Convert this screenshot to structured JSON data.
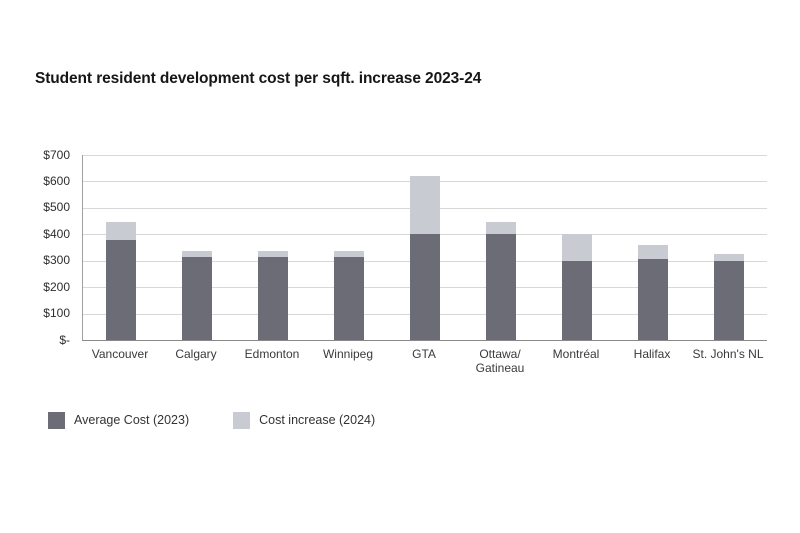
{
  "page": {
    "background_color": "#ffffff"
  },
  "chart_data": {
    "type": "bar",
    "stacked": true,
    "title": "Student resident development cost per sqft. increase 2023-24",
    "xlabel": "",
    "ylabel": "",
    "ylim": [
      0,
      700
    ],
    "grid": true,
    "legend_position": "below-left",
    "categories": [
      "Vancouver",
      "Calgary",
      "Edmonton",
      "Winnipeg",
      "GTA",
      "Ottawa/\nGatineau",
      "Montréal",
      "Halifax",
      "St. John's NL"
    ],
    "series": [
      {
        "name": "Average Cost (2023)",
        "color": "#6b6c76",
        "values": [
          380,
          315,
          315,
          315,
          400,
          400,
          300,
          305,
          300
        ]
      },
      {
        "name": "Cost increase (2024)",
        "color": "#c9cbd2",
        "values": [
          65,
          20,
          20,
          20,
          220,
          45,
          100,
          55,
          25
        ]
      }
    ],
    "stack_totals_2024": [
      445,
      335,
      335,
      335,
      620,
      445,
      400,
      360,
      325
    ],
    "yticks": [
      {
        "value": 700,
        "label": "$700"
      },
      {
        "value": 600,
        "label": "$600"
      },
      {
        "value": 500,
        "label": "$500"
      },
      {
        "value": 400,
        "label": "$400"
      },
      {
        "value": 300,
        "label": "$300"
      },
      {
        "value": 200,
        "label": "$200"
      },
      {
        "value": 100,
        "label": "$100"
      },
      {
        "value": 0,
        "label": "$-"
      }
    ],
    "colors": {
      "gridline": "#d8d8d8",
      "y_axis_line": "#a0a0a0",
      "x_axis_line": "#8a8a8a",
      "title_text": "#161616",
      "tick_text": "#2e2e2e",
      "category_text": "#3a3a3a",
      "legend_text": "#333333"
    }
  }
}
